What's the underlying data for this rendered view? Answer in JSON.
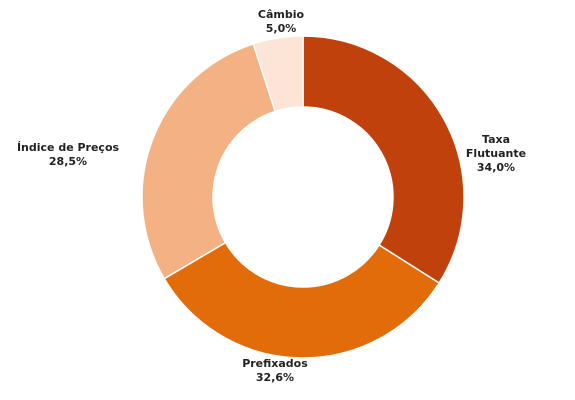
{
  "chart_data": {
    "type": "donut",
    "categories": [
      "Taxa Flutuante",
      "Prefixados",
      "Índice de Preços",
      "Câmbio"
    ],
    "values": [
      34.0,
      32.6,
      28.5,
      5.0
    ],
    "value_labels": [
      "34,0%",
      "32,6%",
      "28,5%",
      "5,0%"
    ],
    "colors": [
      "#c0410b",
      "#e36c0a",
      "#f4b183",
      "#fce4d6"
    ]
  }
}
